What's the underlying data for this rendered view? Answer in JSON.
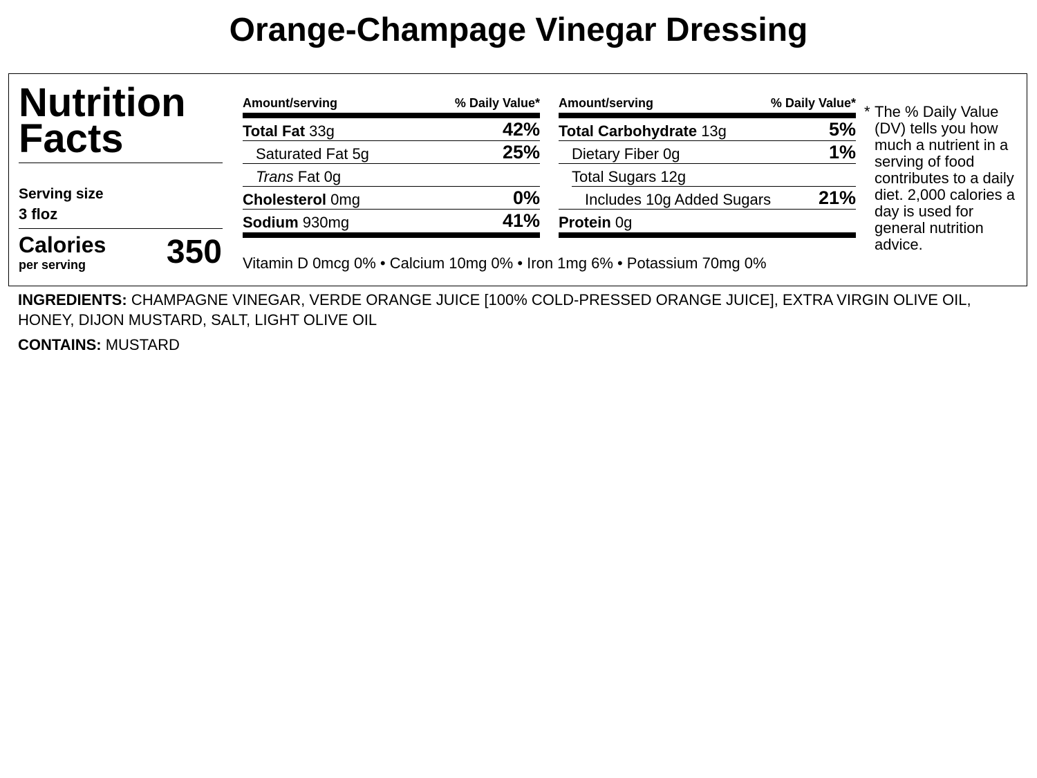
{
  "product_title": "Orange-Champage Vinegar Dressing",
  "panel": {
    "heading_line1": "Nutrition",
    "heading_line2": "Facts",
    "serving_size_label": "Serving size",
    "serving_size_value": "3 floz",
    "calories_label": "Calories",
    "per_serving_label": "per serving",
    "calories_value": "350"
  },
  "left_column": {
    "amount_header": "Amount/serving",
    "dv_header": "% Daily Value*",
    "rows": [
      {
        "name": "Total Fat",
        "amount": "33g",
        "dv": "42%"
      },
      {
        "name": "Saturated Fat",
        "amount": "5g",
        "dv": "25%"
      },
      {
        "name_italic": "Trans",
        "name": "Fat",
        "amount": "0g",
        "dv": ""
      },
      {
        "name": "Cholesterol",
        "amount": "0mg",
        "dv": "0%"
      },
      {
        "name": "Sodium",
        "amount": "930mg",
        "dv": "41%"
      }
    ]
  },
  "right_column": {
    "amount_header": "Amount/serving",
    "dv_header": "% Daily Value*",
    "rows": [
      {
        "name": "Total Carbohydrate",
        "amount": "13g",
        "dv": "5%"
      },
      {
        "name": "Dietary Fiber",
        "amount": "0g",
        "dv": "1%"
      },
      {
        "name": "Total Sugars",
        "amount": "12g",
        "dv": ""
      },
      {
        "name": "Includes 10g Added Sugars",
        "amount": "",
        "dv": "21%"
      },
      {
        "name": "Protein",
        "amount": "0g",
        "dv": ""
      }
    ]
  },
  "vitamins_line": "Vitamin D 0mcg 0% • Calcium 10mg 0% • Iron 1mg 6% • Potassium 70mg 0%",
  "footnote": {
    "star": "*",
    "text": "The % Daily Value (DV) tells you how much a nutrient in a serving of food contributes to a daily diet. 2,000 calories a day is used for general nutrition advice."
  },
  "ingredients": {
    "label": "INGREDIENTS:",
    "text": "CHAMPAGNE VINEGAR, VERDE ORANGE JUICE [100% COLD-PRESSED ORANGE JUICE], EXTRA VIRGIN OLIVE OIL, HONEY, DIJON MUSTARD, SALT, LIGHT OLIVE OIL"
  },
  "contains": {
    "label": "CONTAINS:",
    "text": "MUSTARD"
  }
}
